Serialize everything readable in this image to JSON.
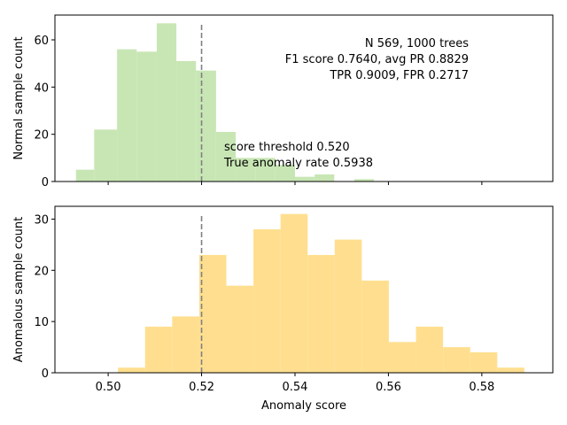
{
  "chart_data": [
    {
      "type": "bar",
      "panel": "top",
      "ylabel": "Normal sample count",
      "xlabel": "",
      "xlim": [
        0.4886,
        0.5952
      ],
      "ylim": [
        0,
        70.5
      ],
      "bar_color": "#c8e6b4",
      "bars": [
        {
          "x0": 0.4931,
          "x1": 0.497,
          "count": 5
        },
        {
          "x0": 0.497,
          "x1": 0.5019,
          "count": 22
        },
        {
          "x0": 0.5019,
          "x1": 0.5061,
          "count": 56
        },
        {
          "x0": 0.5061,
          "x1": 0.5104,
          "count": 55
        },
        {
          "x0": 0.5104,
          "x1": 0.5146,
          "count": 67
        },
        {
          "x0": 0.5146,
          "x1": 0.5188,
          "count": 51
        },
        {
          "x0": 0.5188,
          "x1": 0.5231,
          "count": 47
        },
        {
          "x0": 0.5231,
          "x1": 0.5273,
          "count": 21
        },
        {
          "x0": 0.5273,
          "x1": 0.5315,
          "count": 10
        },
        {
          "x0": 0.5315,
          "x1": 0.5357,
          "count": 10
        },
        {
          "x0": 0.5357,
          "x1": 0.54,
          "count": 7
        },
        {
          "x0": 0.54,
          "x1": 0.5442,
          "count": 2
        },
        {
          "x0": 0.5442,
          "x1": 0.5484,
          "count": 3
        },
        {
          "x0": 0.5484,
          "x1": 0.5527,
          "count": 0
        },
        {
          "x0": 0.5527,
          "x1": 0.5569,
          "count": 1
        }
      ],
      "yticks": [
        0,
        20,
        40,
        60
      ],
      "xticks": [
        0.5,
        0.52,
        0.54,
        0.56,
        0.58
      ],
      "threshold": 0.52,
      "threshold_top": 67,
      "annotations": {
        "summary_1": "N 569, 1000 trees",
        "summary_2": "F1 score 0.7640, avg PR 0.8829",
        "summary_3": "TPR 0.9009, FPR 0.2717",
        "threshold_1": "score threshold 0.520",
        "threshold_2": "True anomaly rate 0.5938"
      }
    },
    {
      "type": "bar",
      "panel": "bottom",
      "ylabel": "Anomalous sample count",
      "xlabel": "Anomaly score",
      "xlim": [
        0.4886,
        0.5952
      ],
      "ylim": [
        0,
        32.5
      ],
      "bar_color": "#ffdf8f",
      "bars": [
        {
          "x0": 0.5021,
          "x1": 0.5079,
          "count": 1
        },
        {
          "x0": 0.5079,
          "x1": 0.5137,
          "count": 9
        },
        {
          "x0": 0.5137,
          "x1": 0.5195,
          "count": 11
        },
        {
          "x0": 0.5195,
          "x1": 0.5253,
          "count": 23
        },
        {
          "x0": 0.5253,
          "x1": 0.5311,
          "count": 17
        },
        {
          "x0": 0.5311,
          "x1": 0.5369,
          "count": 28
        },
        {
          "x0": 0.5369,
          "x1": 0.5427,
          "count": 31
        },
        {
          "x0": 0.5427,
          "x1": 0.5485,
          "count": 23
        },
        {
          "x0": 0.5485,
          "x1": 0.5543,
          "count": 26
        },
        {
          "x0": 0.5543,
          "x1": 0.5601,
          "count": 18
        },
        {
          "x0": 0.5601,
          "x1": 0.5659,
          "count": 6
        },
        {
          "x0": 0.5659,
          "x1": 0.5717,
          "count": 9
        },
        {
          "x0": 0.5717,
          "x1": 0.5775,
          "count": 5
        },
        {
          "x0": 0.5775,
          "x1": 0.5833,
          "count": 4
        },
        {
          "x0": 0.5833,
          "x1": 0.5891,
          "count": 1
        }
      ],
      "yticks": [
        0,
        10,
        20,
        30
      ],
      "xticks": [
        0.5,
        0.52,
        0.54,
        0.56,
        0.58
      ],
      "xticklabels": [
        "0.50",
        "0.52",
        "0.54",
        "0.56",
        "0.58"
      ],
      "threshold": 0.52,
      "threshold_top": 31
    }
  ]
}
